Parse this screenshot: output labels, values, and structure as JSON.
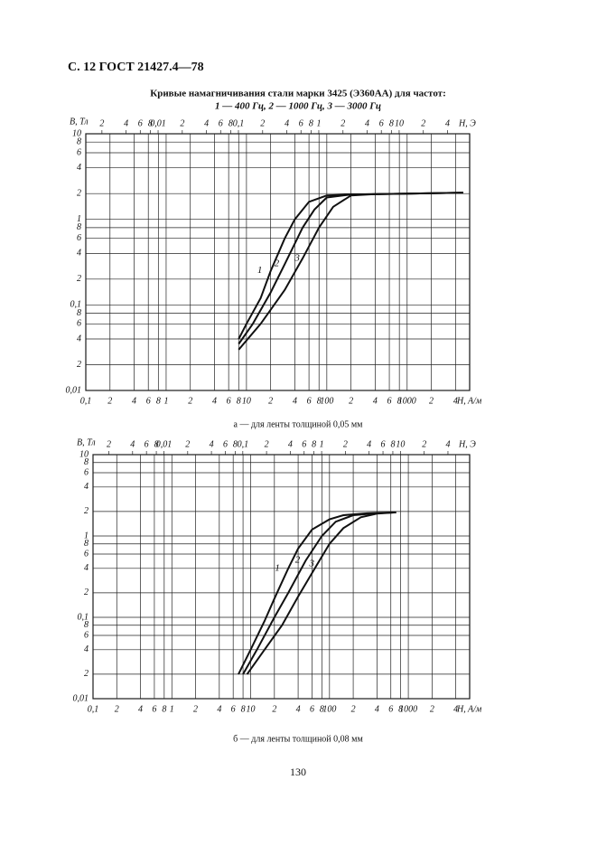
{
  "header": "С. 12 ГОСТ 21427.4—78",
  "title": [
    "Кривые намагничивания стали марки 3425 (Э360АА) для частот:",
    "1 — 400 Гц, 2 — 1000 Гц, 3 — 3000 Гц"
  ],
  "page_number": "130",
  "chart_data": [
    {
      "type": "line",
      "caption": "а — для ленты толщиной 0,05 мм",
      "xscale": "log",
      "yscale": "log",
      "grid": true,
      "y_label": "B, Тл",
      "x_label": "H, A/м",
      "x2_label": "H, Э",
      "xlim": [
        0.1,
        6000
      ],
      "x2lim": [
        0.00126,
        75.4
      ],
      "ylim": [
        0.01,
        10
      ],
      "xticks": [
        {
          "value": 0.1,
          "label": "0,1"
        },
        {
          "value": 0.2,
          "label": "2"
        },
        {
          "value": 0.4,
          "label": "4"
        },
        {
          "value": 0.6,
          "label": "6"
        },
        {
          "value": 0.8,
          "label": "8"
        },
        1,
        2,
        4,
        6,
        8,
        10,
        {
          "value": 20,
          "label": "2"
        },
        {
          "value": 40,
          "label": "4"
        },
        {
          "value": 60,
          "label": "6"
        },
        {
          "value": 80,
          "label": "8"
        },
        100,
        {
          "value": 200,
          "label": "2"
        },
        {
          "value": 400,
          "label": "4"
        },
        {
          "value": 600,
          "label": "6"
        },
        {
          "value": 800,
          "label": "8"
        },
        1000,
        {
          "value": 2000,
          "label": "2"
        },
        {
          "value": 4000,
          "label": "4"
        }
      ],
      "x2ticks": [
        {
          "value": 0.002,
          "label": "2"
        },
        {
          "value": 0.004,
          "label": "4"
        },
        {
          "value": 0.006,
          "label": "6"
        },
        {
          "value": 0.008,
          "label": "8"
        },
        {
          "value": 0.01,
          "label": "0,01"
        },
        {
          "value": 0.02,
          "label": "2"
        },
        {
          "value": 0.04,
          "label": "4"
        },
        {
          "value": 0.06,
          "label": "6"
        },
        {
          "value": 0.08,
          "label": "8"
        },
        {
          "value": 0.1,
          "label": "0,1"
        },
        {
          "value": 0.2,
          "label": "2"
        },
        {
          "value": 0.4,
          "label": "4"
        },
        {
          "value": 0.6,
          "label": "6"
        },
        {
          "value": 0.8,
          "label": "8"
        },
        1,
        2,
        4,
        6,
        8,
        10,
        {
          "value": 20,
          "label": "2"
        },
        {
          "value": 40,
          "label": "4"
        }
      ],
      "yticks": [
        {
          "value": 0.01,
          "label": "0,01"
        },
        {
          "value": 0.02,
          "label": "2"
        },
        {
          "value": 0.04,
          "label": "4"
        },
        {
          "value": 0.06,
          "label": "6"
        },
        {
          "value": 0.08,
          "label": "8"
        },
        {
          "value": 0.1,
          "label": "0,1"
        },
        {
          "value": 0.2,
          "label": "2"
        },
        {
          "value": 0.4,
          "label": "4"
        },
        {
          "value": 0.6,
          "label": "6"
        },
        {
          "value": 0.8,
          "label": "8"
        },
        1,
        2,
        4,
        6,
        8,
        10
      ],
      "series": [
        {
          "name": "1",
          "color": "#111111",
          "x": [
            8,
            10,
            15,
            20,
            30,
            40,
            60,
            100,
            200,
            1000,
            5000
          ],
          "values": [
            0.04,
            0.06,
            0.12,
            0.25,
            0.6,
            1.0,
            1.6,
            1.9,
            1.95,
            2.0,
            2.05
          ]
        },
        {
          "name": "2",
          "color": "#111111",
          "x": [
            8,
            12,
            20,
            30,
            50,
            70,
            100,
            200,
            1000,
            5000
          ],
          "values": [
            0.035,
            0.06,
            0.14,
            0.3,
            0.8,
            1.3,
            1.8,
            1.95,
            2.0,
            2.05
          ]
        },
        {
          "name": "3",
          "color": "#111111",
          "x": [
            8,
            15,
            30,
            50,
            80,
            120,
            200,
            400,
            1000,
            5000
          ],
          "values": [
            0.03,
            0.06,
            0.15,
            0.35,
            0.8,
            1.4,
            1.9,
            1.97,
            2.0,
            2.05
          ]
        }
      ]
    },
    {
      "type": "line",
      "caption": "б — для ленты толщиной 0,08 мм",
      "xscale": "log",
      "yscale": "log",
      "grid": true,
      "y_label": "B, Тл",
      "x_label": "H, A/м",
      "x2_label": "H, Э",
      "xlim": [
        0.1,
        6000
      ],
      "x2lim": [
        0.00126,
        75.4
      ],
      "ylim": [
        0.01,
        10
      ],
      "xticks": [
        {
          "value": 0.1,
          "label": "0,1"
        },
        {
          "value": 0.2,
          "label": "2"
        },
        {
          "value": 0.4,
          "label": "4"
        },
        {
          "value": 0.6,
          "label": "6"
        },
        {
          "value": 0.8,
          "label": "8"
        },
        1,
        2,
        4,
        6,
        8,
        10,
        {
          "value": 20,
          "label": "2"
        },
        {
          "value": 40,
          "label": "4"
        },
        {
          "value": 60,
          "label": "6"
        },
        {
          "value": 80,
          "label": "8"
        },
        100,
        {
          "value": 200,
          "label": "2"
        },
        {
          "value": 400,
          "label": "4"
        },
        {
          "value": 600,
          "label": "6"
        },
        {
          "value": 800,
          "label": "8"
        },
        1000,
        {
          "value": 2000,
          "label": "2"
        },
        {
          "value": 4000,
          "label": "4"
        }
      ],
      "x2ticks": [
        {
          "value": 0.002,
          "label": "2"
        },
        {
          "value": 0.004,
          "label": "4"
        },
        {
          "value": 0.006,
          "label": "6"
        },
        {
          "value": 0.008,
          "label": "8"
        },
        {
          "value": 0.01,
          "label": "0,01"
        },
        {
          "value": 0.02,
          "label": "2"
        },
        {
          "value": 0.04,
          "label": "4"
        },
        {
          "value": 0.06,
          "label": "6"
        },
        {
          "value": 0.08,
          "label": "8"
        },
        {
          "value": 0.1,
          "label": "0,1"
        },
        {
          "value": 0.2,
          "label": "2"
        },
        {
          "value": 0.4,
          "label": "4"
        },
        {
          "value": 0.6,
          "label": "6"
        },
        {
          "value": 0.8,
          "label": "8"
        },
        1,
        2,
        4,
        6,
        8,
        10,
        {
          "value": 20,
          "label": "2"
        },
        {
          "value": 40,
          "label": "4"
        }
      ],
      "yticks": [
        {
          "value": 0.01,
          "label": "0,01"
        },
        {
          "value": 0.02,
          "label": "2"
        },
        {
          "value": 0.04,
          "label": "4"
        },
        {
          "value": 0.06,
          "label": "6"
        },
        {
          "value": 0.08,
          "label": "8"
        },
        {
          "value": 0.1,
          "label": "0,1"
        },
        {
          "value": 0.2,
          "label": "2"
        },
        {
          "value": 0.4,
          "label": "4"
        },
        {
          "value": 0.6,
          "label": "6"
        },
        {
          "value": 0.8,
          "label": "8"
        },
        1,
        2,
        4,
        6,
        8,
        10
      ],
      "series": [
        {
          "name": "1",
          "color": "#111111",
          "x": [
            7,
            10,
            15,
            20,
            30,
            40,
            60,
            100,
            150,
            300,
            700
          ],
          "values": [
            0.02,
            0.04,
            0.09,
            0.17,
            0.4,
            0.7,
            1.2,
            1.6,
            1.8,
            1.9,
            1.95
          ]
        },
        {
          "name": "2",
          "color": "#111111",
          "x": [
            8,
            12,
            20,
            30,
            50,
            80,
            120,
            200,
            400,
            700
          ],
          "values": [
            0.02,
            0.04,
            0.1,
            0.2,
            0.5,
            1.0,
            1.5,
            1.8,
            1.9,
            1.95
          ]
        },
        {
          "name": "3",
          "color": "#111111",
          "x": [
            9,
            15,
            25,
            40,
            70,
            100,
            150,
            250,
            400,
            700
          ],
          "values": [
            0.02,
            0.04,
            0.08,
            0.18,
            0.45,
            0.8,
            1.25,
            1.7,
            1.88,
            1.95
          ]
        }
      ]
    }
  ]
}
